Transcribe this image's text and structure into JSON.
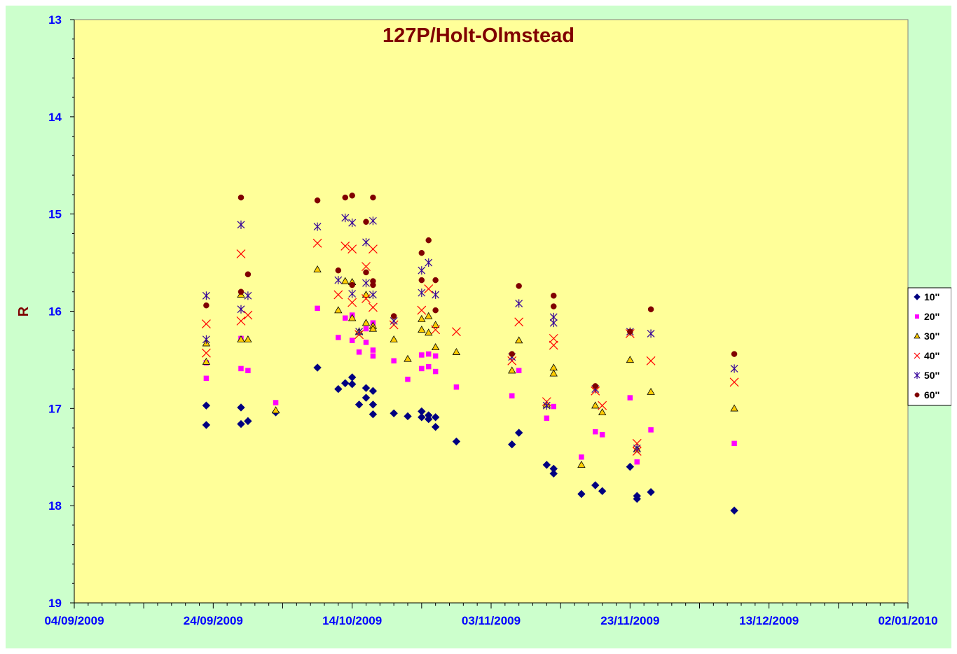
{
  "chart_data": {
    "type": "scatter",
    "title": "127P/Holt-Olmstead",
    "xlabel": "",
    "ylabel": "R",
    "x_axis": {
      "type": "date",
      "min": "2009-09-04",
      "max": "2010-01-02",
      "major_ticks": [
        "2009-09-04",
        "2009-09-14",
        "2009-09-24",
        "2009-10-04",
        "2009-10-14",
        "2009-10-24",
        "2009-11-03",
        "2009-11-13",
        "2009-11-23",
        "2009-12-03",
        "2009-12-13",
        "2009-12-23",
        "2010-01-02"
      ],
      "tick_labels": [
        "04/09/2009",
        "24/09/2009",
        "14/10/2009",
        "03/11/2009",
        "23/11/2009",
        "13/12/2009",
        "02/01/2010"
      ]
    },
    "y_axis": {
      "min": 13,
      "max": 19,
      "reversed": true,
      "tick_labels": [
        "13",
        "14",
        "15",
        "16",
        "17",
        "18",
        "19"
      ]
    },
    "grid": false,
    "legend": {
      "placement": "right"
    },
    "series": [
      {
        "name": "10''",
        "marker": "diamond",
        "color": "#000080",
        "points": [
          [
            "2009-09-23",
            16.97
          ],
          [
            "2009-09-23",
            17.17
          ],
          [
            "2009-09-28",
            16.99
          ],
          [
            "2009-09-28",
            17.16
          ],
          [
            "2009-09-29",
            17.13
          ],
          [
            "2009-10-03",
            17.04
          ],
          [
            "2009-10-09",
            16.58
          ],
          [
            "2009-10-12",
            16.8
          ],
          [
            "2009-10-13",
            16.74
          ],
          [
            "2009-10-14",
            16.68
          ],
          [
            "2009-10-14",
            16.75
          ],
          [
            "2009-10-15",
            16.96
          ],
          [
            "2009-10-16",
            16.79
          ],
          [
            "2009-10-16",
            16.89
          ],
          [
            "2009-10-17",
            16.82
          ],
          [
            "2009-10-17",
            16.96
          ],
          [
            "2009-10-17",
            17.06
          ],
          [
            "2009-10-20",
            17.05
          ],
          [
            "2009-10-22",
            17.08
          ],
          [
            "2009-10-24",
            17.03
          ],
          [
            "2009-10-24",
            17.09
          ],
          [
            "2009-10-25",
            17.07
          ],
          [
            "2009-10-25",
            17.11
          ],
          [
            "2009-10-26",
            17.09
          ],
          [
            "2009-10-26",
            17.19
          ],
          [
            "2009-10-29",
            17.34
          ],
          [
            "2009-11-06",
            17.37
          ],
          [
            "2009-11-07",
            17.25
          ],
          [
            "2009-11-11",
            17.58
          ],
          [
            "2009-11-12",
            17.62
          ],
          [
            "2009-11-12",
            17.67
          ],
          [
            "2009-11-16",
            17.88
          ],
          [
            "2009-11-18",
            17.79
          ],
          [
            "2009-11-19",
            17.85
          ],
          [
            "2009-11-23",
            17.6
          ],
          [
            "2009-11-24",
            17.9
          ],
          [
            "2009-11-24",
            17.93
          ],
          [
            "2009-11-26",
            17.86
          ],
          [
            "2009-12-08",
            18.05
          ]
        ]
      },
      {
        "name": "20''",
        "marker": "square",
        "color": "#ff00ff",
        "points": [
          [
            "2009-09-23",
            16.53
          ],
          [
            "2009-09-23",
            16.69
          ],
          [
            "2009-09-28",
            16.28
          ],
          [
            "2009-09-28",
            16.59
          ],
          [
            "2009-09-29",
            16.61
          ],
          [
            "2009-10-03",
            16.94
          ],
          [
            "2009-10-09",
            15.97
          ],
          [
            "2009-10-12",
            16.27
          ],
          [
            "2009-10-13",
            16.07
          ],
          [
            "2009-10-14",
            16.04
          ],
          [
            "2009-10-14",
            16.3
          ],
          [
            "2009-10-15",
            16.42
          ],
          [
            "2009-10-16",
            16.18
          ],
          [
            "2009-10-16",
            16.32
          ],
          [
            "2009-10-17",
            16.12
          ],
          [
            "2009-10-17",
            16.4
          ],
          [
            "2009-10-17",
            16.46
          ],
          [
            "2009-10-20",
            16.51
          ],
          [
            "2009-10-22",
            16.7
          ],
          [
            "2009-10-24",
            16.45
          ],
          [
            "2009-10-24",
            16.59
          ],
          [
            "2009-10-25",
            16.44
          ],
          [
            "2009-10-25",
            16.57
          ],
          [
            "2009-10-26",
            16.46
          ],
          [
            "2009-10-26",
            16.62
          ],
          [
            "2009-10-29",
            16.78
          ],
          [
            "2009-11-06",
            16.87
          ],
          [
            "2009-11-07",
            16.61
          ],
          [
            "2009-11-11",
            17.1
          ],
          [
            "2009-11-12",
            16.98
          ],
          [
            "2009-11-16",
            17.5
          ],
          [
            "2009-11-18",
            17.24
          ],
          [
            "2009-11-19",
            17.27
          ],
          [
            "2009-11-23",
            16.89
          ],
          [
            "2009-11-24",
            17.55
          ],
          [
            "2009-11-26",
            17.22
          ],
          [
            "2009-12-08",
            17.36
          ]
        ]
      },
      {
        "name": "30''",
        "marker": "triangle",
        "color": "#ffcc00",
        "points": [
          [
            "2009-09-23",
            16.33
          ],
          [
            "2009-09-23",
            16.52
          ],
          [
            "2009-09-28",
            15.83
          ],
          [
            "2009-09-28",
            16.29
          ],
          [
            "2009-09-29",
            16.29
          ],
          [
            "2009-10-03",
            17.02
          ],
          [
            "2009-10-09",
            15.57
          ],
          [
            "2009-10-12",
            15.99
          ],
          [
            "2009-10-13",
            15.69
          ],
          [
            "2009-10-14",
            15.7
          ],
          [
            "2009-10-14",
            16.07
          ],
          [
            "2009-10-15",
            16.21
          ],
          [
            "2009-10-16",
            15.83
          ],
          [
            "2009-10-16",
            16.12
          ],
          [
            "2009-10-17",
            16.15
          ],
          [
            "2009-10-17",
            16.18
          ],
          [
            "2009-10-20",
            16.29
          ],
          [
            "2009-10-22",
            16.49
          ],
          [
            "2009-10-24",
            16.08
          ],
          [
            "2009-10-24",
            16.19
          ],
          [
            "2009-10-25",
            16.05
          ],
          [
            "2009-10-25",
            16.22
          ],
          [
            "2009-10-26",
            16.37
          ],
          [
            "2009-10-26",
            16.14
          ],
          [
            "2009-10-29",
            16.42
          ],
          [
            "2009-11-06",
            16.61
          ],
          [
            "2009-11-07",
            16.3
          ],
          [
            "2009-11-11",
            16.96
          ],
          [
            "2009-11-12",
            16.58
          ],
          [
            "2009-11-12",
            16.64
          ],
          [
            "2009-11-16",
            17.58
          ],
          [
            "2009-11-18",
            16.97
          ],
          [
            "2009-11-19",
            17.04
          ],
          [
            "2009-11-23",
            16.5
          ],
          [
            "2009-11-24",
            17.42
          ],
          [
            "2009-11-26",
            16.83
          ],
          [
            "2009-12-08",
            17.0
          ]
        ]
      },
      {
        "name": "40''",
        "marker": "x",
        "color": "#ff0000",
        "points": [
          [
            "2009-09-23",
            16.13
          ],
          [
            "2009-09-23",
            16.43
          ],
          [
            "2009-09-28",
            15.41
          ],
          [
            "2009-09-28",
            16.1
          ],
          [
            "2009-09-29",
            16.04
          ],
          [
            "2009-10-09",
            15.3
          ],
          [
            "2009-10-12",
            15.83
          ],
          [
            "2009-10-13",
            15.33
          ],
          [
            "2009-10-14",
            15.36
          ],
          [
            "2009-10-14",
            15.91
          ],
          [
            "2009-10-15",
            16.24
          ],
          [
            "2009-10-16",
            15.54
          ],
          [
            "2009-10-16",
            15.87
          ],
          [
            "2009-10-17",
            15.36
          ],
          [
            "2009-10-17",
            15.96
          ],
          [
            "2009-10-20",
            16.14
          ],
          [
            "2009-10-24",
            15.99
          ],
          [
            "2009-10-25",
            15.77
          ],
          [
            "2009-10-26",
            16.19
          ],
          [
            "2009-10-29",
            16.21
          ],
          [
            "2009-11-06",
            16.51
          ],
          [
            "2009-11-07",
            16.11
          ],
          [
            "2009-11-11",
            16.93
          ],
          [
            "2009-11-12",
            16.28
          ],
          [
            "2009-11-12",
            16.35
          ],
          [
            "2009-11-18",
            16.82
          ],
          [
            "2009-11-19",
            16.97
          ],
          [
            "2009-11-23",
            16.23
          ],
          [
            "2009-11-24",
            17.36
          ],
          [
            "2009-11-24",
            17.44
          ],
          [
            "2009-11-26",
            16.51
          ],
          [
            "2009-12-08",
            16.73
          ]
        ]
      },
      {
        "name": "50''",
        "marker": "star",
        "color": "#330099",
        "points": [
          [
            "2009-09-23",
            15.84
          ],
          [
            "2009-09-23",
            16.29
          ],
          [
            "2009-09-28",
            15.11
          ],
          [
            "2009-09-28",
            15.98
          ],
          [
            "2009-09-29",
            15.84
          ],
          [
            "2009-10-09",
            15.13
          ],
          [
            "2009-10-12",
            15.68
          ],
          [
            "2009-10-13",
            15.04
          ],
          [
            "2009-10-14",
            15.09
          ],
          [
            "2009-10-14",
            15.82
          ],
          [
            "2009-10-15",
            16.21
          ],
          [
            "2009-10-16",
            15.29
          ],
          [
            "2009-10-16",
            15.71
          ],
          [
            "2009-10-17",
            15.07
          ],
          [
            "2009-10-17",
            15.83
          ],
          [
            "2009-10-20",
            16.1
          ],
          [
            "2009-10-24",
            15.58
          ],
          [
            "2009-10-24",
            15.81
          ],
          [
            "2009-10-25",
            15.5
          ],
          [
            "2009-10-26",
            15.83
          ],
          [
            "2009-11-06",
            16.47
          ],
          [
            "2009-11-07",
            15.92
          ],
          [
            "2009-11-11",
            16.97
          ],
          [
            "2009-11-12",
            16.06
          ],
          [
            "2009-11-12",
            16.12
          ],
          [
            "2009-11-18",
            16.8
          ],
          [
            "2009-11-23",
            16.21
          ],
          [
            "2009-11-24",
            17.41
          ],
          [
            "2009-11-26",
            16.23
          ],
          [
            "2009-12-08",
            16.59
          ]
        ]
      },
      {
        "name": "60''",
        "marker": "circle",
        "color": "#800000",
        "points": [
          [
            "2009-09-23",
            15.94
          ],
          [
            "2009-09-28",
            14.83
          ],
          [
            "2009-09-28",
            15.8
          ],
          [
            "2009-09-29",
            15.62
          ],
          [
            "2009-10-09",
            14.86
          ],
          [
            "2009-10-12",
            15.58
          ],
          [
            "2009-10-13",
            14.83
          ],
          [
            "2009-10-14",
            14.81
          ],
          [
            "2009-10-14",
            15.73
          ],
          [
            "2009-10-16",
            15.08
          ],
          [
            "2009-10-16",
            15.6
          ],
          [
            "2009-10-17",
            14.83
          ],
          [
            "2009-10-17",
            15.69
          ],
          [
            "2009-10-17",
            15.73
          ],
          [
            "2009-10-20",
            16.05
          ],
          [
            "2009-10-24",
            15.4
          ],
          [
            "2009-10-24",
            15.68
          ],
          [
            "2009-10-25",
            15.27
          ],
          [
            "2009-10-26",
            15.68
          ],
          [
            "2009-10-26",
            15.99
          ],
          [
            "2009-11-06",
            16.44
          ],
          [
            "2009-11-07",
            15.74
          ],
          [
            "2009-11-12",
            15.84
          ],
          [
            "2009-11-12",
            15.95
          ],
          [
            "2009-11-18",
            16.77
          ],
          [
            "2009-11-23",
            16.21
          ],
          [
            "2009-11-26",
            15.98
          ],
          [
            "2009-12-08",
            16.44
          ]
        ]
      }
    ]
  },
  "colors": {
    "outer_background": "#ccffcc",
    "plot_background": "#ffff99",
    "axis_text": "#0000ff",
    "title_text": "#800000"
  }
}
